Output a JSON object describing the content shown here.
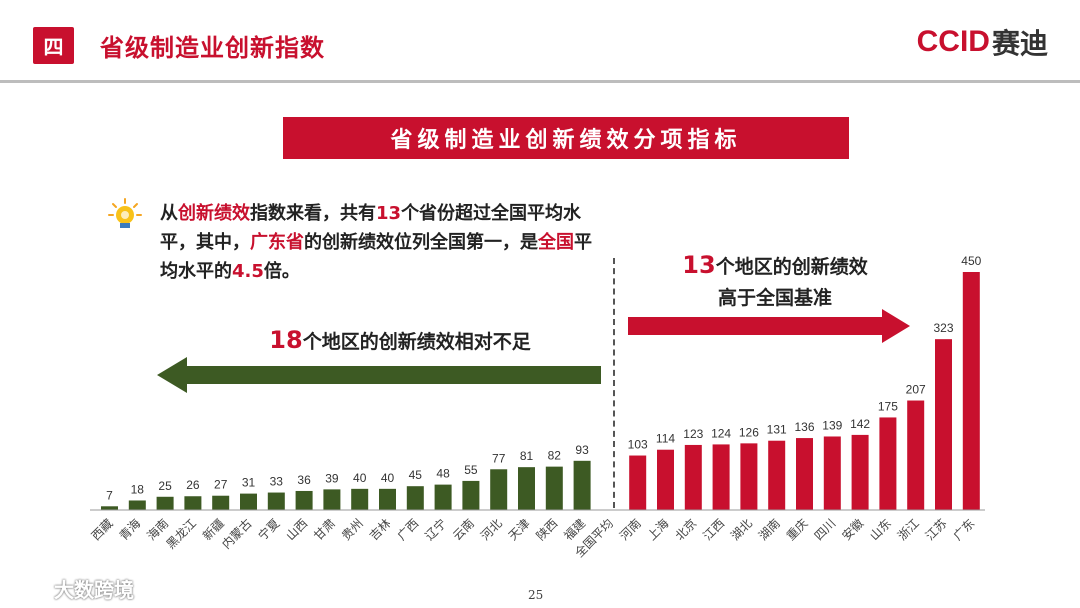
{
  "header": {
    "section_badge": "四",
    "title": "省级制造业创新指数",
    "brand_latin": "CCID",
    "brand_chinese": "赛迪"
  },
  "banner": {
    "text": "省级制造业创新绩效分项指标"
  },
  "description": {
    "p1": "从",
    "p2": "创新绩效",
    "p3": "指数来看，共有",
    "p4": "13",
    "p5": "个省份超过全国平均水平，其中，",
    "p6": "广东省",
    "p7": "的创新绩效位列全国第一，是",
    "p8": "全国",
    "p9": "平均水平的",
    "p10": "4.5",
    "p11": "倍。"
  },
  "callouts": {
    "right_num": "13",
    "right_text1": "个地区的创新绩效",
    "right_text2": "高于全国基准",
    "left_num": "18",
    "left_text": "个地区的创新绩效相对不足"
  },
  "colors": {
    "below_avg": "#3d5a23",
    "above_avg": "#c8102e",
    "accent": "#c8102e"
  },
  "chart_data": {
    "type": "bar",
    "categories": [
      "西藏",
      "青海",
      "海南",
      "黑龙江",
      "新疆",
      "内蒙古",
      "宁夏",
      "山西",
      "甘肃",
      "贵州",
      "吉林",
      "广西",
      "辽宁",
      "云南",
      "河北",
      "天津",
      "陕西",
      "福建",
      "全国平均",
      "河南",
      "上海",
      "北京",
      "江西",
      "湖北",
      "湖南",
      "重庆",
      "四川",
      "安徽",
      "山东",
      "浙江",
      "江苏",
      "广东"
    ],
    "values": [
      7,
      18,
      25,
      26,
      27,
      31,
      33,
      36,
      39,
      40,
      40,
      45,
      48,
      55,
      77,
      81,
      82,
      93,
      null,
      103,
      114,
      123,
      124,
      126,
      131,
      136,
      139,
      142,
      175,
      207,
      323,
      450
    ],
    "title": "省级制造业创新绩效分项指标",
    "xlabel": "",
    "ylabel": "",
    "ylim": [
      0,
      450
    ],
    "grid": false,
    "legend": "none",
    "baseline_category": "全国平均"
  },
  "footer": {
    "page_number": "25",
    "watermark": "大数跨境"
  }
}
